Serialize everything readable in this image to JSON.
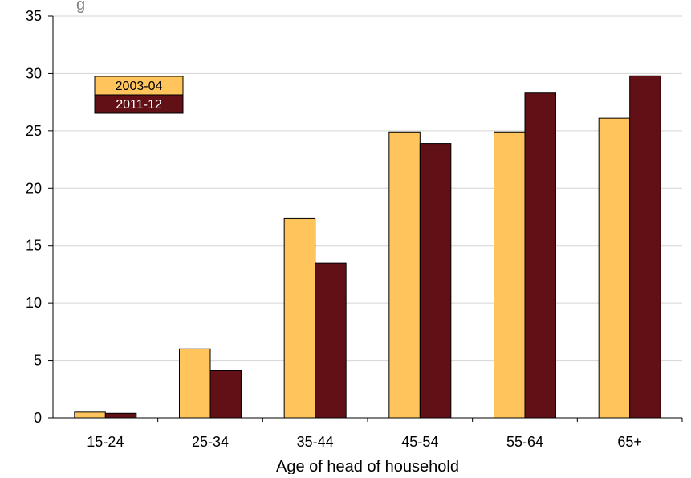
{
  "chart_data": {
    "type": "bar",
    "title_fragment": "g",
    "xlabel": "Age of head of household",
    "ylabel": "",
    "categories": [
      "15-24",
      "25-34",
      "35-44",
      "45-54",
      "55-64",
      "65+"
    ],
    "series": [
      {
        "name": "2003-04",
        "color": "#FFC45C",
        "values": [
          0.5,
          6.0,
          17.4,
          24.9,
          24.9,
          26.1
        ]
      },
      {
        "name": "2011-12",
        "color": "#611016",
        "values": [
          0.4,
          4.1,
          13.5,
          23.9,
          28.3,
          29.8
        ]
      }
    ],
    "ylim": [
      0,
      35
    ],
    "yticks": [
      0,
      5,
      10,
      15,
      20,
      25,
      30,
      35
    ],
    "grid": true,
    "legend_position": "top-left"
  }
}
